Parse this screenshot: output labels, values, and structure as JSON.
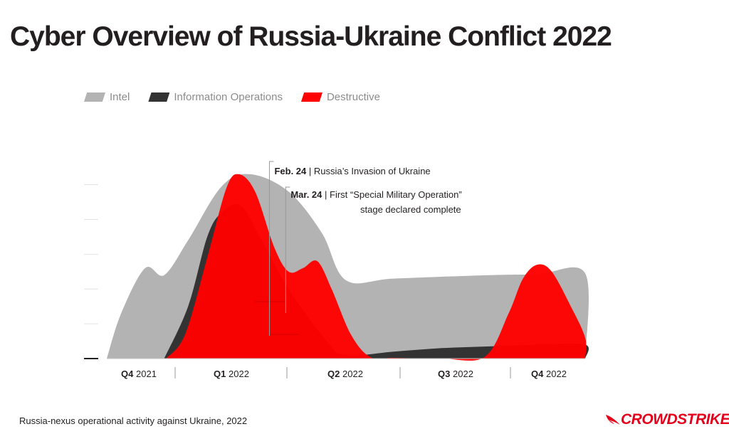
{
  "page": {
    "title": "Cyber Overview of Russia-Ukraine Conflict 2022",
    "caption": "Russia-nexus operational activity against Ukraine, 2022",
    "brand": "CROWDSTRIKE"
  },
  "colors": {
    "intel": "#b3b3b3",
    "information_operations": "#333333",
    "destructive": "#ff0000",
    "title": "#231f20",
    "brand": "#e4001b"
  },
  "legend": [
    {
      "key": "intel",
      "label": "Intel"
    },
    {
      "key": "information_operations",
      "label": "Information Operations"
    },
    {
      "key": "destructive",
      "label": "Destructive"
    }
  ],
  "chart_data": {
    "type": "area",
    "title": "Cyber Overview of Russia-Ukraine Conflict 2022",
    "xlabel": "",
    "ylabel": "",
    "categories": [
      {
        "bold": "Q4",
        "rest": "2021"
      },
      {
        "bold": "Q1",
        "rest": "2022"
      },
      {
        "bold": "Q2",
        "rest": "2022"
      },
      {
        "bold": "Q3",
        "rest": "2022"
      },
      {
        "bold": "Q4",
        "rest": "2022"
      }
    ],
    "xlim": [
      0,
      5
    ],
    "ylim": [
      0,
      5.4
    ],
    "y_ticks": [
      1,
      2,
      3,
      4,
      5
    ],
    "grid": false,
    "legend_position": "top-left",
    "series": [
      {
        "name": "Intel",
        "key": "intel",
        "points": [
          [
            0,
            0
          ],
          [
            0.15,
            1.3
          ],
          [
            0.4,
            2.6
          ],
          [
            0.6,
            2.4
          ],
          [
            0.85,
            3.4
          ],
          [
            1.2,
            4.95
          ],
          [
            1.5,
            5.3
          ],
          [
            1.9,
            4.8
          ],
          [
            2.25,
            3.6
          ],
          [
            2.5,
            2.25
          ],
          [
            3.0,
            2.3
          ],
          [
            4.0,
            2.4
          ],
          [
            4.5,
            2.42
          ],
          [
            5.0,
            2.45
          ],
          [
            5.0,
            0
          ]
        ]
      },
      {
        "name": "Information Operations",
        "key": "information_operations",
        "points": [
          [
            0.6,
            0
          ],
          [
            0.85,
            1.5
          ],
          [
            1.05,
            3.5
          ],
          [
            1.2,
            4.2
          ],
          [
            1.4,
            4.4
          ],
          [
            1.6,
            3.5
          ],
          [
            1.9,
            2.0
          ],
          [
            2.3,
            0.5
          ],
          [
            2.5,
            0.1
          ],
          [
            3.0,
            0.2
          ],
          [
            3.5,
            0.3
          ],
          [
            4.0,
            0.35
          ],
          [
            4.5,
            0.4
          ],
          [
            5.0,
            0.4
          ],
          [
            5.0,
            0
          ]
        ]
      },
      {
        "name": "Destructive",
        "key": "destructive",
        "points": [
          [
            0.62,
            0
          ],
          [
            0.82,
            0.7
          ],
          [
            1.05,
            2.9
          ],
          [
            1.25,
            4.9
          ],
          [
            1.38,
            5.3
          ],
          [
            1.55,
            4.8
          ],
          [
            1.75,
            3.2
          ],
          [
            1.9,
            2.5
          ],
          [
            2.05,
            2.6
          ],
          [
            2.2,
            2.8
          ],
          [
            2.35,
            2.0
          ],
          [
            2.55,
            0.7
          ],
          [
            2.75,
            0.05
          ],
          [
            3.0,
            0.02
          ],
          [
            3.5,
            0
          ],
          [
            3.95,
            0.05
          ],
          [
            4.2,
            1.3
          ],
          [
            4.35,
            2.3
          ],
          [
            4.5,
            2.7
          ],
          [
            4.65,
            2.5
          ],
          [
            4.85,
            1.5
          ],
          [
            5.0,
            0.6
          ],
          [
            5.0,
            0
          ]
        ]
      }
    ],
    "annotations": [
      {
        "x": 1.7,
        "bold": "Feb. 24",
        "text": " | Russia’s Invasion of Ukraine",
        "text2": ""
      },
      {
        "x": 1.87,
        "bold": "Mar. 24",
        "text": " | First “Special Military Operation”",
        "text2": "stage declared complete"
      }
    ]
  }
}
